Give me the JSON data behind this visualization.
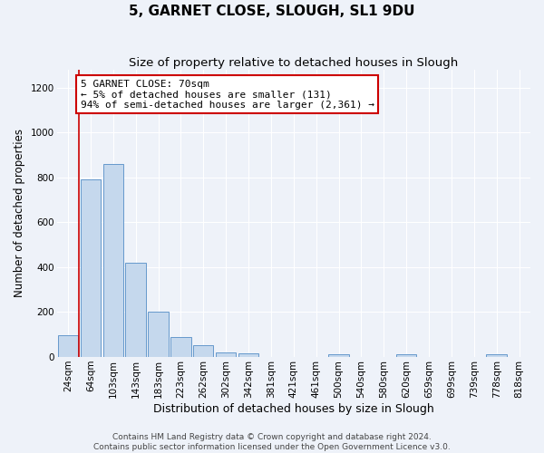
{
  "title": "5, GARNET CLOSE, SLOUGH, SL1 9DU",
  "subtitle": "Size of property relative to detached houses in Slough",
  "xlabel": "Distribution of detached houses by size in Slough",
  "ylabel": "Number of detached properties",
  "bin_labels": [
    "24sqm",
    "64sqm",
    "103sqm",
    "143sqm",
    "183sqm",
    "223sqm",
    "262sqm",
    "302sqm",
    "342sqm",
    "381sqm",
    "421sqm",
    "461sqm",
    "500sqm",
    "540sqm",
    "580sqm",
    "620sqm",
    "659sqm",
    "699sqm",
    "739sqm",
    "778sqm",
    "818sqm"
  ],
  "bar_heights": [
    95,
    790,
    860,
    420,
    200,
    88,
    52,
    22,
    15,
    0,
    0,
    0,
    12,
    0,
    0,
    12,
    0,
    0,
    0,
    12,
    0
  ],
  "bar_color": "#c5d8ed",
  "bar_edge_color": "#6699cc",
  "vline_color": "#cc0000",
  "annotation_box_text": "5 GARNET CLOSE: 70sqm\n← 5% of detached houses are smaller (131)\n94% of semi-detached houses are larger (2,361) →",
  "annotation_box_color": "#cc0000",
  "ylim": [
    0,
    1280
  ],
  "yticks": [
    0,
    200,
    400,
    600,
    800,
    1000,
    1200
  ],
  "footer_line1": "Contains HM Land Registry data © Crown copyright and database right 2024.",
  "footer_line2": "Contains public sector information licensed under the Open Government Licence v3.0.",
  "background_color": "#eef2f9",
  "grid_color": "#ffffff",
  "title_fontsize": 11,
  "subtitle_fontsize": 9.5,
  "xlabel_fontsize": 9,
  "ylabel_fontsize": 8.5,
  "tick_fontsize": 7.5,
  "annotation_fontsize": 8,
  "footer_fontsize": 6.5
}
